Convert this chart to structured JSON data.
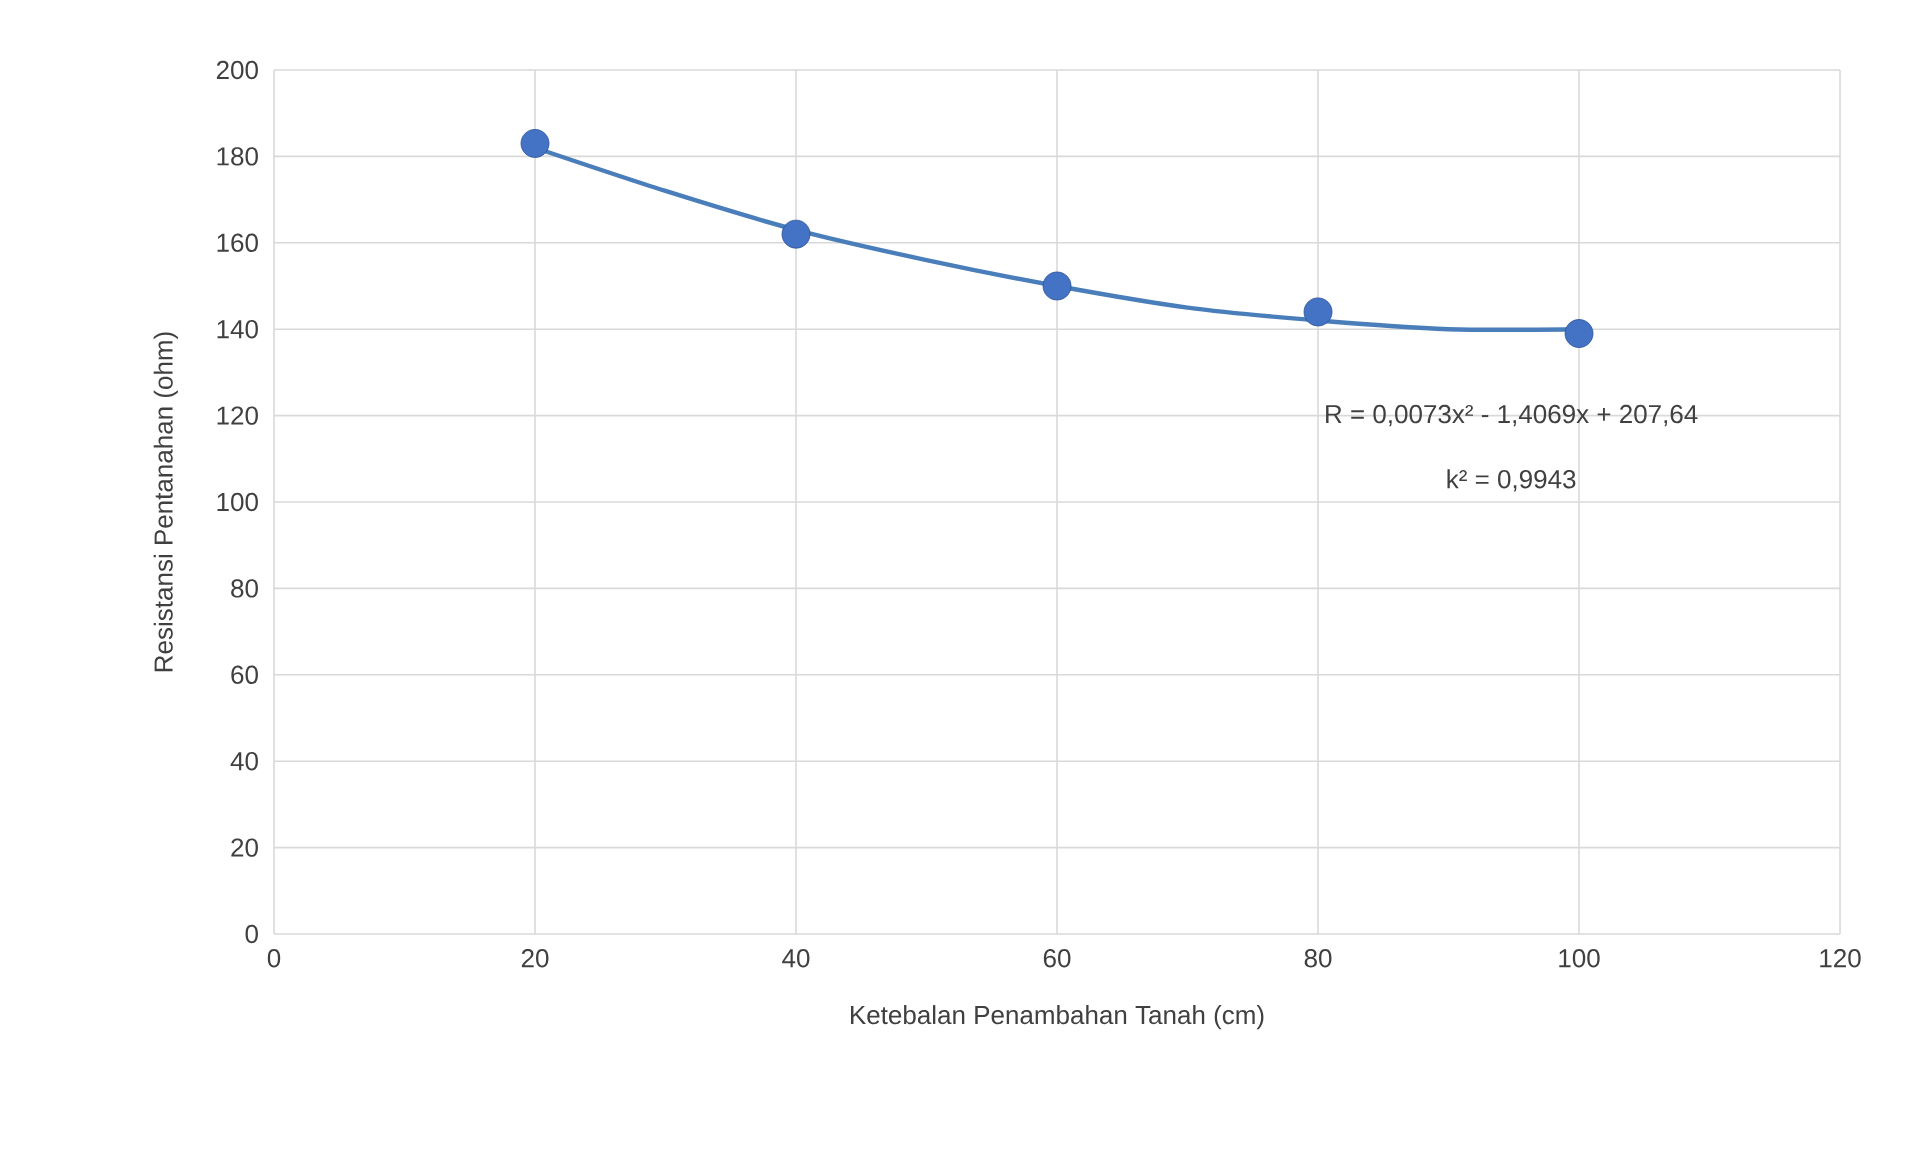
{
  "chart_data": {
    "type": "scatter",
    "xlabel": "Ketebalan Penambahan Tanah (cm)",
    "ylabel": "Resistansi Pentanahan (ohm)",
    "x": [
      20,
      40,
      60,
      80,
      100
    ],
    "series": [
      {
        "color": "#4472c4",
        "marker": "circle",
        "values": [
          183,
          162,
          150,
          144,
          139
        ]
      },
      {
        "type": "line",
        "color": "#4a7ebb",
        "marker": "none",
        "line_style": "solid",
        "x": [
          20,
          30,
          40,
          50,
          60,
          70,
          80,
          90,
          100
        ],
        "values": [
          182,
          172,
          163,
          156,
          150,
          145,
          142,
          140,
          140
        ]
      }
    ],
    "xlim": [
      0,
      120
    ],
    "xticks": [
      0,
      20,
      40,
      60,
      80,
      100,
      120
    ],
    "ylim": [
      0,
      200
    ],
    "yticks": [
      0,
      20,
      40,
      60,
      80,
      100,
      120,
      140,
      160,
      180,
      200
    ],
    "grid": true,
    "annotations": [
      "R = 0,0073x² - 1,4069x + 207,64",
      "k² = 0,9943"
    ]
  }
}
